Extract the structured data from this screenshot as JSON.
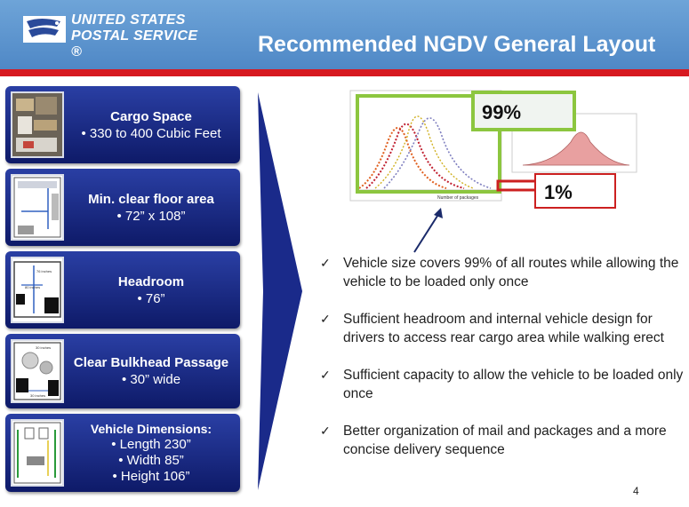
{
  "header": {
    "logo_line1": "UNITED STATES",
    "logo_line2": "POSTAL SERVICE ®",
    "title": "Recommended NGDV General Layout"
  },
  "cards": [
    {
      "title": "Cargo Space",
      "lines": [
        "• 330 to 400 Cubic Feet"
      ]
    },
    {
      "title": "Min. clear floor area",
      "lines": [
        "• 72” x 108”"
      ]
    },
    {
      "title": "Headroom",
      "lines": [
        "• 76”"
      ]
    },
    {
      "title": "Clear Bulkhead Passage",
      "lines": [
        "• 30” wide"
      ]
    },
    {
      "title": "Vehicle Dimensions:",
      "lines": [
        "• Length 230”",
        "• Width 85”",
        "• Height 106”"
      ]
    }
  ],
  "thumb_labels": {
    "headroom_top": "76 inches",
    "headroom_mid": "80 inches",
    "bulkhead_top": "30 inches",
    "bulkhead_bottom": "30 inches"
  },
  "charts": {
    "callout_main": "99%",
    "callout_small": "1%",
    "xaxis_caption": "Number of packages"
  },
  "bullets": [
    "Vehicle size covers 99% of all routes while allowing the vehicle to be loaded only once",
    "Sufficient headroom and internal vehicle design for drivers to access rear cargo area while walking erect",
    "Sufficient capacity to allow the vehicle to be loaded only once",
    "Better organization of mail and packages and a more concise delivery sequence"
  ],
  "check_glyph": "✓",
  "page_number": "4",
  "colors": {
    "header_blue": "#5b93cf",
    "accent_red": "#d71920",
    "card_navy": "#1a2a8a",
    "callout_green": "#8cc63f"
  }
}
